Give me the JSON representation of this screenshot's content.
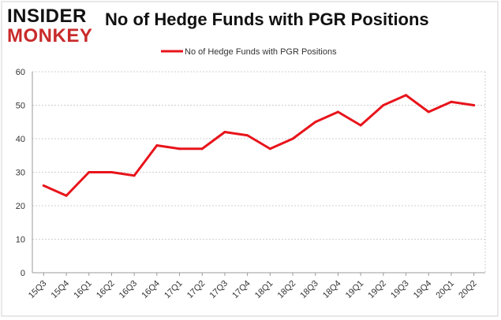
{
  "logo": {
    "line1": "INSIDER",
    "line2": "MONKEY"
  },
  "colors": {
    "series": "#e8141b",
    "grid": "#cfcfcf",
    "axis": "#9a9a9a",
    "text": "#333333",
    "logo_accent": "#c92a2a"
  },
  "chart_data": {
    "type": "line",
    "title": "No of Hedge Funds with PGR Positions",
    "xlabel": "",
    "ylabel": "",
    "ylim": [
      0,
      60
    ],
    "yticks": [
      0,
      10,
      20,
      30,
      40,
      50,
      60
    ],
    "grid": true,
    "legend_position": "top-center",
    "categories": [
      "15Q3",
      "15Q4",
      "16Q1",
      "16Q2",
      "16Q3",
      "16Q4",
      "17Q1",
      "17Q2",
      "17Q3",
      "17Q4",
      "18Q1",
      "18Q2",
      "18Q3",
      "18Q4",
      "19Q1",
      "19Q2",
      "19Q3",
      "19Q4",
      "20Q1",
      "20Q2"
    ],
    "series": [
      {
        "name": "No of Hedge Funds with PGR Positions",
        "values": [
          26,
          23,
          30,
          30,
          29,
          38,
          37,
          37,
          42,
          41,
          37,
          40,
          45,
          48,
          44,
          50,
          53,
          48,
          51,
          50
        ]
      }
    ]
  }
}
